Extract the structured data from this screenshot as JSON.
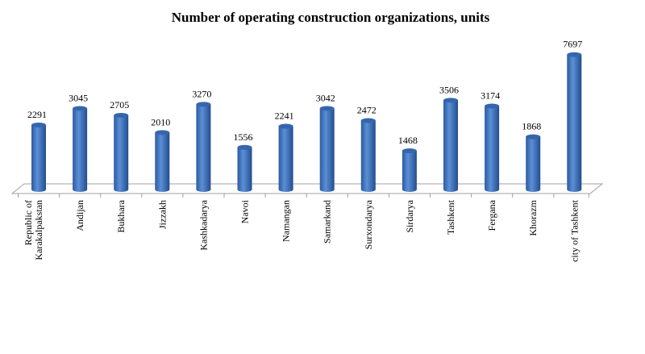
{
  "chart_data": {
    "type": "bar",
    "title": "Number of operating construction organizations, units",
    "categories": [
      "Republic of Karakalpakstan",
      "Andijan",
      "Bukhara",
      "Jizzakh",
      "Kashkadarya",
      "Navoi",
      "Namangan",
      "Samarkand",
      "Surxondarya",
      "Sirdarya",
      "Tashkent",
      "Fergana",
      "Khorazm",
      "city of Tashkent"
    ],
    "category_lines": [
      [
        "Republic of",
        "Karakalpakstan"
      ],
      [
        "Andijan"
      ],
      [
        "Bukhara"
      ],
      [
        "Jizzakh"
      ],
      [
        "Kashkadarya"
      ],
      [
        "Navoi"
      ],
      [
        "Namangan"
      ],
      [
        "Samarkand"
      ],
      [
        "Surxondarya"
      ],
      [
        "Sirdarya"
      ],
      [
        "Tashkent"
      ],
      [
        "Fergana"
      ],
      [
        "Khorazm"
      ],
      [
        "city of Tashkent"
      ]
    ],
    "values": [
      2291,
      3045,
      2705,
      2010,
      3270,
      1556,
      2241,
      3042,
      2472,
      1468,
      3506,
      3174,
      1868,
      7697
    ],
    "xlabel": "",
    "ylabel": "",
    "grid": false,
    "legend": "none",
    "color": "#3f74c0"
  }
}
